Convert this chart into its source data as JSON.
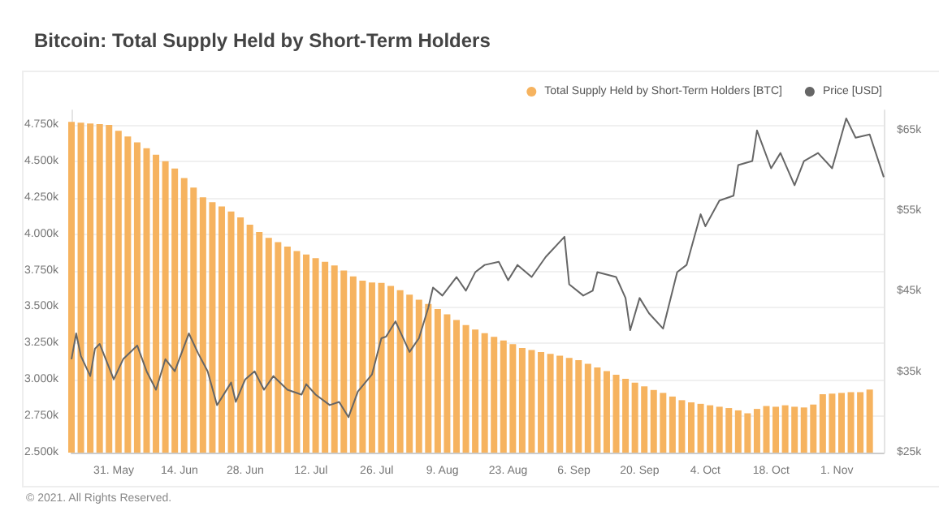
{
  "chart_data": {
    "type": "bar",
    "title": "Bitcoin: Total Supply Held by Short-Term Holders",
    "annotations": [
      "© 2021. All Rights Reserved."
    ],
    "legend": "top right",
    "grid": "y",
    "xlim": [
      "2021-05-22",
      "2021-11-11"
    ],
    "xticks": [
      {
        "value": "2021-05-31",
        "label": "31. May"
      },
      {
        "value": "2021-06-14",
        "label": "14. Jun"
      },
      {
        "value": "2021-06-28",
        "label": "28. Jun"
      },
      {
        "value": "2021-07-12",
        "label": "12. Jul"
      },
      {
        "value": "2021-07-26",
        "label": "26. Jul"
      },
      {
        "value": "2021-08-09",
        "label": "9. Aug"
      },
      {
        "value": "2021-08-23",
        "label": "23. Aug"
      },
      {
        "value": "2021-09-06",
        "label": "6. Sep"
      },
      {
        "value": "2021-09-20",
        "label": "20. Sep"
      },
      {
        "value": "2021-10-04",
        "label": "4. Oct"
      },
      {
        "value": "2021-10-18",
        "label": "18. Oct"
      },
      {
        "value": "2021-11-01",
        "label": "1. Nov"
      }
    ],
    "ylim": [
      2500,
      4850
    ],
    "yticks": [
      {
        "value": 2500,
        "label": "2.500k"
      },
      {
        "value": 2750,
        "label": "2.750k"
      },
      {
        "value": 3000,
        "label": "3.000k"
      },
      {
        "value": 3250,
        "label": "3.250k"
      },
      {
        "value": 3500,
        "label": "3.500k"
      },
      {
        "value": 3750,
        "label": "3.750k"
      },
      {
        "value": 4000,
        "label": "4.000k"
      },
      {
        "value": 4250,
        "label": "4.250k"
      },
      {
        "value": 4500,
        "label": "4.500k"
      },
      {
        "value": 4750,
        "label": "4.750k"
      }
    ],
    "y2lim": [
      25,
      67.5
    ],
    "y2ticks": [
      {
        "value": 25,
        "label": "$25k"
      },
      {
        "value": 35,
        "label": "$35k"
      },
      {
        "value": 45,
        "label": "$45k"
      },
      {
        "value": 55,
        "label": "$55k"
      },
      {
        "value": 65,
        "label": "$65k"
      }
    ],
    "series": [
      {
        "name": "Total Supply Held by Short-Term Holders [BTC]",
        "color": "#f6b35f",
        "x": [
          "2021-05-22",
          "2021-05-24",
          "2021-05-26",
          "2021-05-28",
          "2021-05-30",
          "2021-06-01",
          "2021-06-03",
          "2021-06-05",
          "2021-06-07",
          "2021-06-09",
          "2021-06-11",
          "2021-06-13",
          "2021-06-15",
          "2021-06-17",
          "2021-06-19",
          "2021-06-21",
          "2021-06-23",
          "2021-06-25",
          "2021-06-27",
          "2021-06-29",
          "2021-07-01",
          "2021-07-03",
          "2021-07-05",
          "2021-07-07",
          "2021-07-09",
          "2021-07-11",
          "2021-07-13",
          "2021-07-15",
          "2021-07-17",
          "2021-07-19",
          "2021-07-21",
          "2021-07-23",
          "2021-07-25",
          "2021-07-27",
          "2021-07-29",
          "2021-07-31",
          "2021-08-02",
          "2021-08-04",
          "2021-08-06",
          "2021-08-08",
          "2021-08-10",
          "2021-08-12",
          "2021-08-14",
          "2021-08-16",
          "2021-08-18",
          "2021-08-20",
          "2021-08-22",
          "2021-08-24",
          "2021-08-26",
          "2021-08-28",
          "2021-08-30",
          "2021-09-01",
          "2021-09-03",
          "2021-09-05",
          "2021-09-07",
          "2021-09-09",
          "2021-09-11",
          "2021-09-13",
          "2021-09-15",
          "2021-09-17",
          "2021-09-19",
          "2021-09-21",
          "2021-09-23",
          "2021-09-25",
          "2021-09-27",
          "2021-09-29",
          "2021-10-01",
          "2021-10-03",
          "2021-10-05",
          "2021-10-07",
          "2021-10-09",
          "2021-10-11",
          "2021-10-13",
          "2021-10-15",
          "2021-10-17",
          "2021-10-19",
          "2021-10-21",
          "2021-10-23",
          "2021-10-25",
          "2021-10-27",
          "2021-10-29",
          "2021-10-31",
          "2021-11-02",
          "2021-11-04",
          "2021-11-06",
          "2021-11-08"
        ],
        "values": [
          4770,
          4765,
          4760,
          4755,
          4750,
          4710,
          4670,
          4630,
          4590,
          4545,
          4500,
          4450,
          4385,
          4320,
          4253,
          4220,
          4190,
          4155,
          4115,
          4065,
          4015,
          3975,
          3945,
          3915,
          3884,
          3860,
          3835,
          3810,
          3785,
          3750,
          3710,
          3680,
          3668,
          3665,
          3645,
          3615,
          3585,
          3550,
          3520,
          3485,
          3450,
          3410,
          3375,
          3345,
          3320,
          3295,
          3270,
          3245,
          3218,
          3205,
          3190,
          3178,
          3165,
          3150,
          3135,
          3110,
          3085,
          3060,
          3035,
          3007,
          2980,
          2955,
          2930,
          2910,
          2885,
          2860,
          2845,
          2835,
          2825,
          2815,
          2806,
          2790,
          2770,
          2800,
          2820,
          2815,
          2825,
          2815,
          2810,
          2830,
          2901,
          2905,
          2910,
          2915,
          2915,
          2933
        ]
      },
      {
        "name": "Price [USD]",
        "type": "line",
        "axis": "y2",
        "color": "#666666",
        "marker": "none",
        "line_style": "solid",
        "x": [
          "2021-05-22",
          "2021-05-23",
          "2021-05-24",
          "2021-05-26",
          "2021-05-27",
          "2021-05-28",
          "2021-05-31",
          "2021-06-02",
          "2021-06-05",
          "2021-06-07",
          "2021-06-09",
          "2021-06-11",
          "2021-06-13",
          "2021-06-16",
          "2021-06-18",
          "2021-06-20",
          "2021-06-22",
          "2021-06-25",
          "2021-06-26",
          "2021-06-28",
          "2021-06-30",
          "2021-07-02",
          "2021-07-04",
          "2021-07-07",
          "2021-07-10",
          "2021-07-11",
          "2021-07-13",
          "2021-07-16",
          "2021-07-18",
          "2021-07-20",
          "2021-07-22",
          "2021-07-25",
          "2021-07-27",
          "2021-07-28",
          "2021-07-30",
          "2021-08-02",
          "2021-08-04",
          "2021-08-06",
          "2021-08-07",
          "2021-08-09",
          "2021-08-12",
          "2021-08-14",
          "2021-08-16",
          "2021-08-18",
          "2021-08-21",
          "2021-08-23",
          "2021-08-25",
          "2021-08-28",
          "2021-08-31",
          "2021-09-04",
          "2021-09-05",
          "2021-09-08",
          "2021-09-10",
          "2021-09-11",
          "2021-09-15",
          "2021-09-17",
          "2021-09-18",
          "2021-09-20",
          "2021-09-22",
          "2021-09-25",
          "2021-09-28",
          "2021-09-30",
          "2021-10-03",
          "2021-10-04",
          "2021-10-07",
          "2021-10-10",
          "2021-10-11",
          "2021-10-14",
          "2021-10-15",
          "2021-10-18",
          "2021-10-20",
          "2021-10-23",
          "2021-10-25",
          "2021-10-28",
          "2021-10-31",
          "2021-11-03",
          "2021-11-05",
          "2021-11-08",
          "2021-11-11"
        ],
        "values": [
          36.6,
          39.8,
          37.0,
          34.5,
          37.9,
          38.5,
          34.1,
          36.6,
          38.3,
          35.1,
          32.8,
          36.6,
          35.1,
          39.8,
          37.3,
          35.1,
          30.9,
          33.7,
          31.3,
          34.1,
          35.1,
          32.8,
          34.5,
          32.8,
          32.2,
          33.5,
          32.2,
          30.9,
          31.3,
          29.4,
          32.6,
          34.7,
          39.2,
          39.4,
          41.3,
          37.5,
          39.2,
          43.0,
          45.5,
          44.5,
          46.8,
          45.1,
          47.4,
          48.3,
          48.7,
          46.4,
          48.3,
          46.8,
          49.3,
          51.8,
          45.9,
          44.5,
          45.1,
          47.4,
          46.8,
          44.2,
          40.2,
          44.2,
          42.3,
          40.4,
          47.4,
          48.3,
          54.6,
          53.1,
          56.3,
          56.9,
          60.7,
          61.2,
          65.0,
          60.3,
          62.2,
          58.2,
          61.2,
          62.2,
          60.3,
          66.5,
          64.1,
          64.5,
          59.2
        ]
      }
    ]
  }
}
